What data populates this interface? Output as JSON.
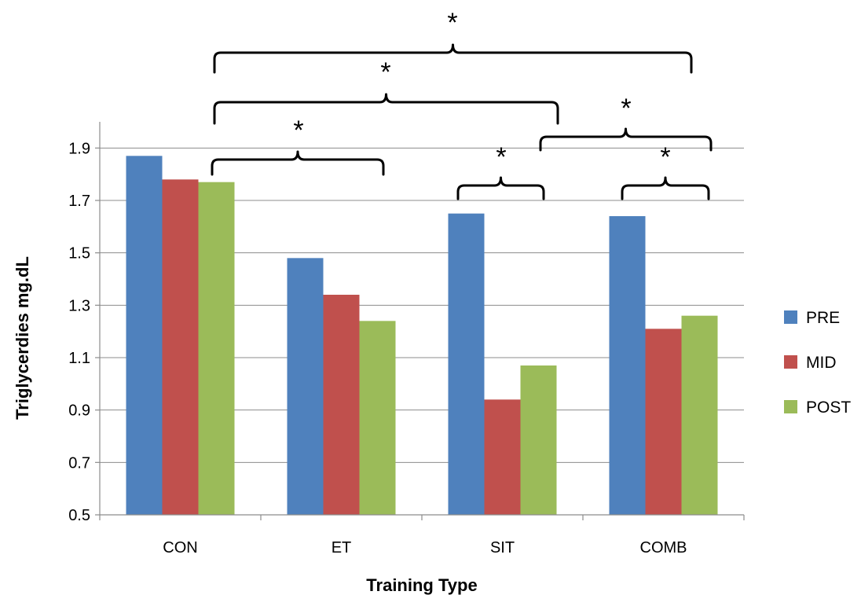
{
  "chart_data": {
    "type": "bar",
    "xlabel": "Training Type",
    "ylabel": "Triglycerdies mg.dL",
    "categories": [
      "CON",
      "ET",
      "SIT",
      "COMB"
    ],
    "ylim": [
      0.5,
      2.0
    ],
    "yticks": [
      "0.5",
      "0.7",
      "0.9",
      "1.1",
      "1.3",
      "1.5",
      "1.7",
      "1.9"
    ],
    "grid": true,
    "legend_position": "right",
    "series": [
      {
        "name": "PRE",
        "color": "#4f81bd",
        "values": [
          1.87,
          1.48,
          1.65,
          1.64
        ]
      },
      {
        "name": "MID",
        "color": "#c0504d",
        "values": [
          1.78,
          1.34,
          0.94,
          1.21
        ]
      },
      {
        "name": "POST",
        "color": "#9bbb59",
        "values": [
          1.77,
          1.24,
          1.07,
          1.26
        ]
      }
    ],
    "significance_marker": "*",
    "significance_brackets": [
      {
        "from": "CON POST",
        "to": "COMB"
      },
      {
        "from": "CON POST",
        "to": "SIT"
      },
      {
        "from": "CON POST",
        "to": "ET"
      },
      {
        "from": "SIT",
        "to": "COMB"
      },
      {
        "from": "SIT PRE",
        "to": "SIT POST"
      },
      {
        "from": "COMB PRE",
        "to": "COMB POST"
      }
    ]
  }
}
